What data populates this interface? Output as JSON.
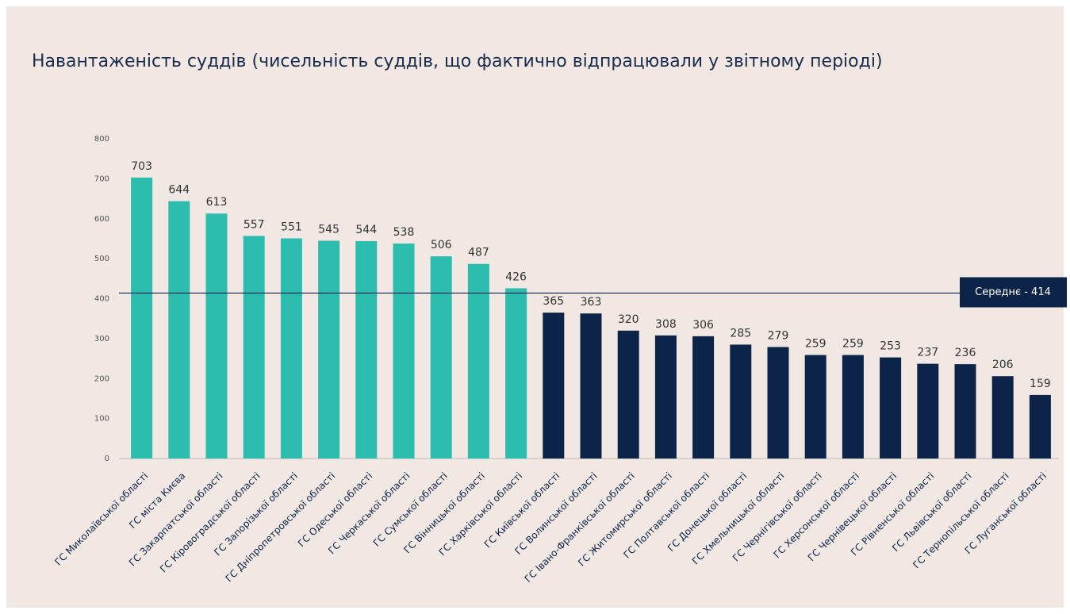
{
  "chart_data": {
    "type": "bar",
    "title": "Навантаженість суддів (чисельність суддів, що фактично відпрацювали у звітному періоді)",
    "categories": [
      "ГС Миколаївської області",
      "ГС міста Києва",
      "ГС Закарпатської області",
      "ГС Кіровоградської області",
      "ГС Запорізької області",
      "ГС Дніпропетровської області",
      "ГС Одеської області",
      "ГС Черкаської області",
      "ГС Сумської області",
      "ГС Вінницької області",
      "ГС Харківської області",
      "ГС Київської області",
      "ГС Волинської області",
      "ГС Івано-Франківської області",
      "ГС Житомирської області",
      "ГС Полтавської області",
      "ГС Донецької області",
      "ГС Хмельницької області",
      "ГС Чернігівської області",
      "ГС Херсонської області",
      "ГС Чернівецької області",
      "ГС Рівненської області",
      "ГС Львівської області",
      "ГС Тернопільської області",
      "ГС Луганської області"
    ],
    "values": [
      703,
      644,
      613,
      557,
      551,
      545,
      544,
      538,
      506,
      487,
      426,
      365,
      363,
      320,
      308,
      306,
      285,
      279,
      259,
      259,
      253,
      237,
      236,
      206,
      159
    ],
    "colors": [
      "#2dbdae",
      "#2dbdae",
      "#2dbdae",
      "#2dbdae",
      "#2dbdae",
      "#2dbdae",
      "#2dbdae",
      "#2dbdae",
      "#2dbdae",
      "#2dbdae",
      "#2dbdae",
      "#0b2447",
      "#0b2447",
      "#0b2447",
      "#0b2447",
      "#0b2447",
      "#0b2447",
      "#0b2447",
      "#0b2447",
      "#0b2447",
      "#0b2447",
      "#0b2447",
      "#0b2447",
      "#0b2447",
      "#0b2447"
    ],
    "ylim": [
      0,
      800
    ],
    "yticks": [
      0,
      100,
      200,
      300,
      400,
      500,
      600,
      700,
      800
    ],
    "average": {
      "value": 414,
      "label": "Середнє - 414"
    }
  }
}
